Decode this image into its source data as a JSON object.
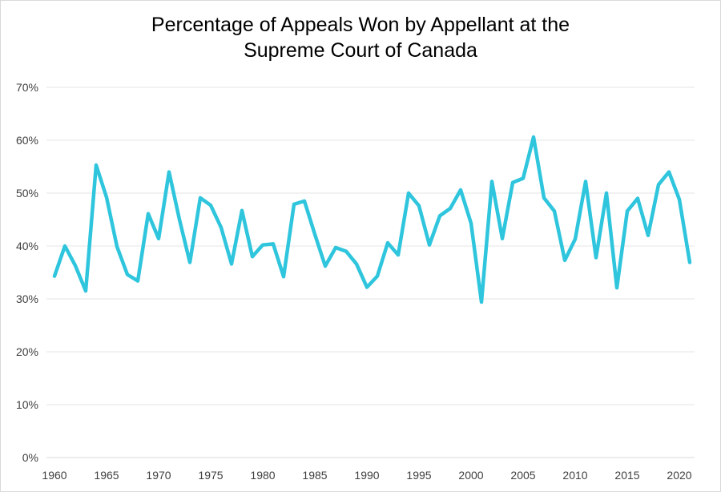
{
  "chart_data": {
    "type": "line",
    "title_lines": [
      "Percentage of Appeals Won by Appellant at the",
      "Supreme Court of Canada"
    ],
    "xlabel": "",
    "ylabel": "",
    "x": [
      1960,
      1961,
      1962,
      1963,
      1964,
      1965,
      1966,
      1967,
      1968,
      1969,
      1970,
      1971,
      1972,
      1973,
      1974,
      1975,
      1976,
      1977,
      1978,
      1979,
      1980,
      1981,
      1982,
      1983,
      1984,
      1985,
      1986,
      1987,
      1988,
      1989,
      1990,
      1991,
      1992,
      1993,
      1994,
      1995,
      1996,
      1997,
      1998,
      1999,
      2000,
      2001,
      2002,
      2003,
      2004,
      2005,
      2006,
      2007,
      2008,
      2009,
      2010,
      2011,
      2012,
      2013,
      2014,
      2015,
      2016,
      2017,
      2018,
      2019,
      2020,
      2021
    ],
    "series": [
      {
        "values": [
          34.3,
          40.0,
          36.3,
          31.5,
          55.3,
          49.2,
          39.9,
          34.6,
          33.4,
          46.1,
          41.4,
          54.0,
          45.0,
          36.9,
          49.1,
          47.7,
          43.5,
          36.6,
          46.7,
          38.0,
          40.2,
          40.4,
          34.2,
          47.9,
          48.5,
          42.2,
          36.2,
          39.7,
          39.0,
          36.6,
          32.2,
          34.3,
          40.6,
          38.3,
          50.0,
          47.6,
          40.2,
          45.7,
          47.1,
          50.6,
          44.3,
          29.4,
          52.2,
          41.4,
          52.0,
          52.8,
          60.6,
          49.1,
          46.6,
          37.3,
          41.3,
          52.2,
          37.8,
          50.0,
          32.1,
          46.6,
          49.0,
          42.0,
          51.6,
          54.0,
          48.8,
          36.9
        ],
        "color": "#2ec5dd"
      }
    ],
    "ylim": [
      0,
      70
    ],
    "yticks": [
      0,
      10,
      20,
      30,
      40,
      50,
      60,
      70
    ],
    "ytick_labels": [
      "0%",
      "10%",
      "20%",
      "30%",
      "40%",
      "50%",
      "60%",
      "70%"
    ],
    "xticks": [
      1960,
      1965,
      1970,
      1975,
      1980,
      1985,
      1990,
      1995,
      2000,
      2005,
      2010,
      2015,
      2020
    ],
    "xtick_labels": [
      "1960",
      "1965",
      "1970",
      "1975",
      "1980",
      "1985",
      "1990",
      "1995",
      "2000",
      "2005",
      "2010",
      "2015",
      "2020"
    ],
    "grid": true,
    "grid_color": "#e6e6e6",
    "legend": "none"
  }
}
